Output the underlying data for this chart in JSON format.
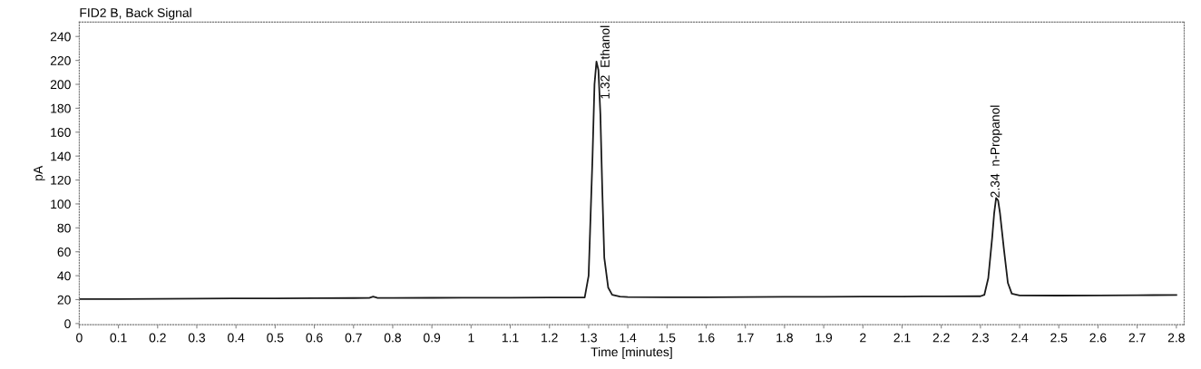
{
  "chart_data": {
    "type": "line",
    "title": "FID2 B, Back Signal",
    "xlabel": "Time [minutes]",
    "ylabel": "pA",
    "series": [
      {
        "color": "#1a1a1a",
        "x": [
          0,
          0.1,
          0.2,
          0.3,
          0.4,
          0.5,
          0.6,
          0.7,
          0.74,
          0.75,
          0.76,
          0.8,
          0.9,
          1.0,
          1.1,
          1.2,
          1.29,
          1.3,
          1.305,
          1.31,
          1.315,
          1.32,
          1.325,
          1.33,
          1.335,
          1.34,
          1.35,
          1.36,
          1.38,
          1.4,
          1.5,
          1.6,
          1.7,
          1.8,
          1.9,
          2.0,
          2.1,
          2.2,
          2.3,
          2.31,
          2.32,
          2.33,
          2.335,
          2.34,
          2.345,
          2.35,
          2.36,
          2.37,
          2.38,
          2.4,
          2.5,
          2.6,
          2.7,
          2.8
        ],
        "values": [
          20.5,
          20.5,
          20.7,
          20.8,
          21,
          21,
          21.2,
          21.3,
          21.4,
          22.5,
          21.5,
          21.4,
          21.5,
          21.6,
          21.6,
          21.7,
          21.7,
          40,
          90,
          140,
          200,
          219,
          212,
          175,
          110,
          55,
          30,
          24,
          22.5,
          22.2,
          22,
          22,
          22.2,
          22.3,
          22.4,
          22.5,
          22.6,
          22.7,
          22.8,
          24,
          38,
          72,
          92,
          105,
          103,
          92,
          62,
          34,
          25,
          23.5,
          23.4,
          23.5,
          23.7,
          23.8
        ]
      }
    ],
    "annotations": [
      {
        "text": "1.32  Ethanol",
        "x": 1.32,
        "y": 219
      },
      {
        "text": "2.34  n-Propanol",
        "x": 2.34,
        "y": 105
      }
    ],
    "xlim": [
      0,
      2.82
    ],
    "ylim": [
      -1,
      252
    ],
    "xticks": [
      0,
      0.1,
      0.2,
      0.3,
      0.4,
      0.5,
      0.6,
      0.7,
      0.8,
      0.9,
      1,
      1.1,
      1.2,
      1.3,
      1.4,
      1.5,
      1.6,
      1.7,
      1.8,
      1.9,
      2,
      2.1,
      2.2,
      2.3,
      2.4,
      2.5,
      2.6,
      2.7,
      2.8
    ],
    "yticks": [
      0,
      20,
      40,
      60,
      80,
      100,
      120,
      140,
      160,
      180,
      200,
      220,
      240
    ],
    "grid": false,
    "legend": false,
    "marker": "none",
    "line_style": "solid"
  }
}
